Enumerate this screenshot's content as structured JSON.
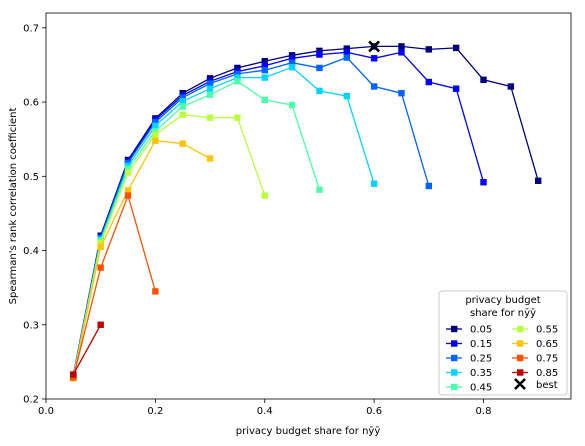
{
  "chart_data": {
    "type": "line",
    "xlabel": "privacy budget share for nȳȳ",
    "ylabel": "Spearman's rank correlation coefficient",
    "xlim": [
      0.0,
      0.96
    ],
    "ylim": [
      0.2,
      0.72
    ],
    "xticks": [
      "0.0",
      "0.2",
      "0.4",
      "0.6",
      "0.8"
    ],
    "yticks": [
      "0.2",
      "0.3",
      "0.4",
      "0.5",
      "0.6",
      "0.7"
    ],
    "grid": false,
    "legend": {
      "title_line1": "privacy budget",
      "title_line2": "share for nȳȳ",
      "placement": "lower-right",
      "best_label": "best"
    },
    "series": [
      {
        "name": "0.05",
        "color": "#00007f",
        "x": [
          0.05,
          0.1,
          0.15,
          0.2,
          0.25,
          0.3,
          0.35,
          0.4,
          0.45,
          0.5,
          0.55,
          0.6,
          0.65,
          0.7,
          0.75,
          0.8,
          0.85,
          0.9
        ],
        "y": [
          0.232,
          0.42,
          0.522,
          0.578,
          0.612,
          0.632,
          0.646,
          0.655,
          0.663,
          0.669,
          0.672,
          0.675,
          0.675,
          0.671,
          0.673,
          0.63,
          0.621,
          0.494
        ]
      },
      {
        "name": "0.15",
        "color": "#0000ff",
        "x": [
          0.05,
          0.1,
          0.15,
          0.2,
          0.25,
          0.3,
          0.35,
          0.4,
          0.45,
          0.5,
          0.55,
          0.6,
          0.65,
          0.7,
          0.75,
          0.8
        ],
        "y": [
          0.231,
          0.418,
          0.52,
          0.576,
          0.609,
          0.628,
          0.641,
          0.649,
          0.659,
          0.664,
          0.667,
          0.659,
          0.667,
          0.627,
          0.618,
          0.492
        ]
      },
      {
        "name": "0.25",
        "color": "#0063ff",
        "x": [
          0.05,
          0.1,
          0.15,
          0.2,
          0.25,
          0.3,
          0.35,
          0.4,
          0.45,
          0.5,
          0.55,
          0.6,
          0.65,
          0.7
        ],
        "y": [
          0.23,
          0.417,
          0.518,
          0.573,
          0.606,
          0.625,
          0.638,
          0.643,
          0.653,
          0.646,
          0.66,
          0.621,
          0.612,
          0.487
        ]
      },
      {
        "name": "0.35",
        "color": "#00d4ff",
        "x": [
          0.05,
          0.1,
          0.15,
          0.2,
          0.25,
          0.3,
          0.35,
          0.4,
          0.45,
          0.5,
          0.55,
          0.6
        ],
        "y": [
          0.23,
          0.415,
          0.514,
          0.568,
          0.601,
          0.618,
          0.633,
          0.633,
          0.647,
          0.615,
          0.608,
          0.49
        ]
      },
      {
        "name": "0.45",
        "color": "#4dffaa",
        "x": [
          0.05,
          0.1,
          0.15,
          0.2,
          0.25,
          0.3,
          0.35,
          0.4,
          0.45,
          0.5
        ],
        "y": [
          0.229,
          0.413,
          0.51,
          0.561,
          0.594,
          0.61,
          0.628,
          0.603,
          0.596,
          0.482
        ]
      },
      {
        "name": "0.55",
        "color": "#b9ff3d",
        "x": [
          0.05,
          0.1,
          0.15,
          0.2,
          0.25,
          0.3,
          0.35,
          0.4
        ],
        "y": [
          0.229,
          0.41,
          0.505,
          0.556,
          0.583,
          0.579,
          0.579,
          0.474
        ]
      },
      {
        "name": "0.65",
        "color": "#ffc400",
        "x": [
          0.05,
          0.1,
          0.15,
          0.2,
          0.25,
          0.3
        ],
        "y": [
          0.228,
          0.405,
          0.481,
          0.548,
          0.544,
          0.524
        ]
      },
      {
        "name": "0.75",
        "color": "#ff5200",
        "x": [
          0.05,
          0.1,
          0.15,
          0.2
        ],
        "y": [
          0.229,
          0.377,
          0.474,
          0.345
        ]
      },
      {
        "name": "0.85",
        "color": "#c00000",
        "x": [
          0.05,
          0.1
        ],
        "y": [
          0.233,
          0.3
        ]
      }
    ],
    "best": {
      "x": 0.6,
      "y": 0.675
    }
  }
}
